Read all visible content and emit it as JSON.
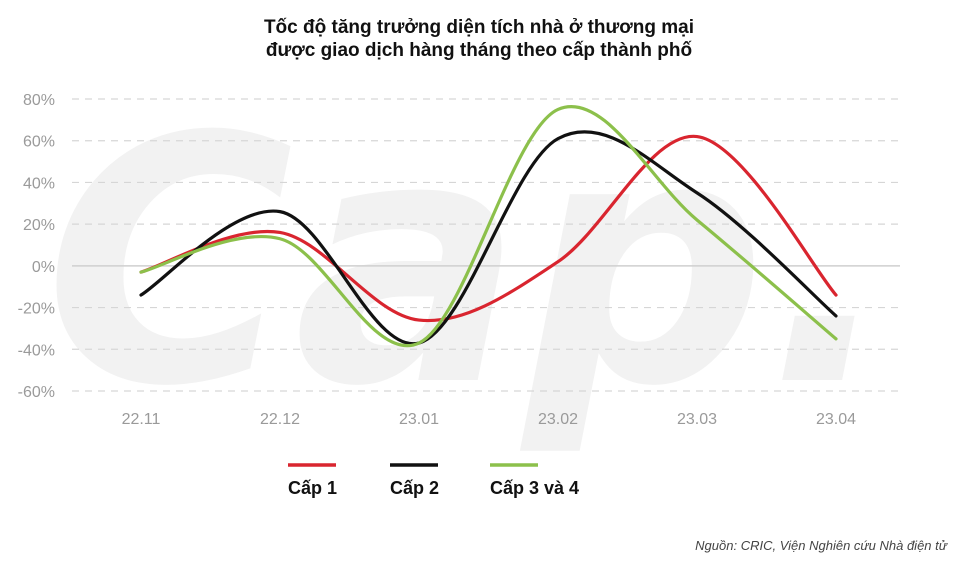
{
  "chart_data": {
    "type": "line",
    "title_lines": [
      "Tốc độ tăng trưởng diện tích nhà ở thương mại",
      "được giao dịch hàng tháng theo cấp thành phố"
    ],
    "categories": [
      "22.11",
      "22.12",
      "23.01",
      "23.02",
      "23.03",
      "23.04"
    ],
    "ylim": [
      -60,
      80
    ],
    "yticks": [
      80,
      60,
      40,
      20,
      0,
      -20,
      -40,
      -60
    ],
    "ytick_labels": [
      "80%",
      "60%",
      "40%",
      "20%",
      "0%",
      "-20%",
      "-40%",
      "-60%"
    ],
    "grid": "horizontal dashed",
    "smooth": true,
    "legend_position": "bottom-left",
    "series": [
      {
        "name": "Cấp 1",
        "color": "#d9252f",
        "values": [
          -3,
          16,
          -26,
          2,
          62,
          -14
        ]
      },
      {
        "name": "Cấp 2",
        "color": "#111111",
        "values": [
          -14,
          26,
          -37,
          61,
          35,
          -24
        ]
      },
      {
        "name": "Cấp 3 và 4",
        "color": "#8cc04b",
        "values": [
          -3,
          13,
          -37,
          75,
          22,
          -35
        ]
      }
    ],
    "source": "Nguồn: CRIC, Viện Nghiên cứu Nhà điện tử"
  },
  "watermark_text": "Cap."
}
